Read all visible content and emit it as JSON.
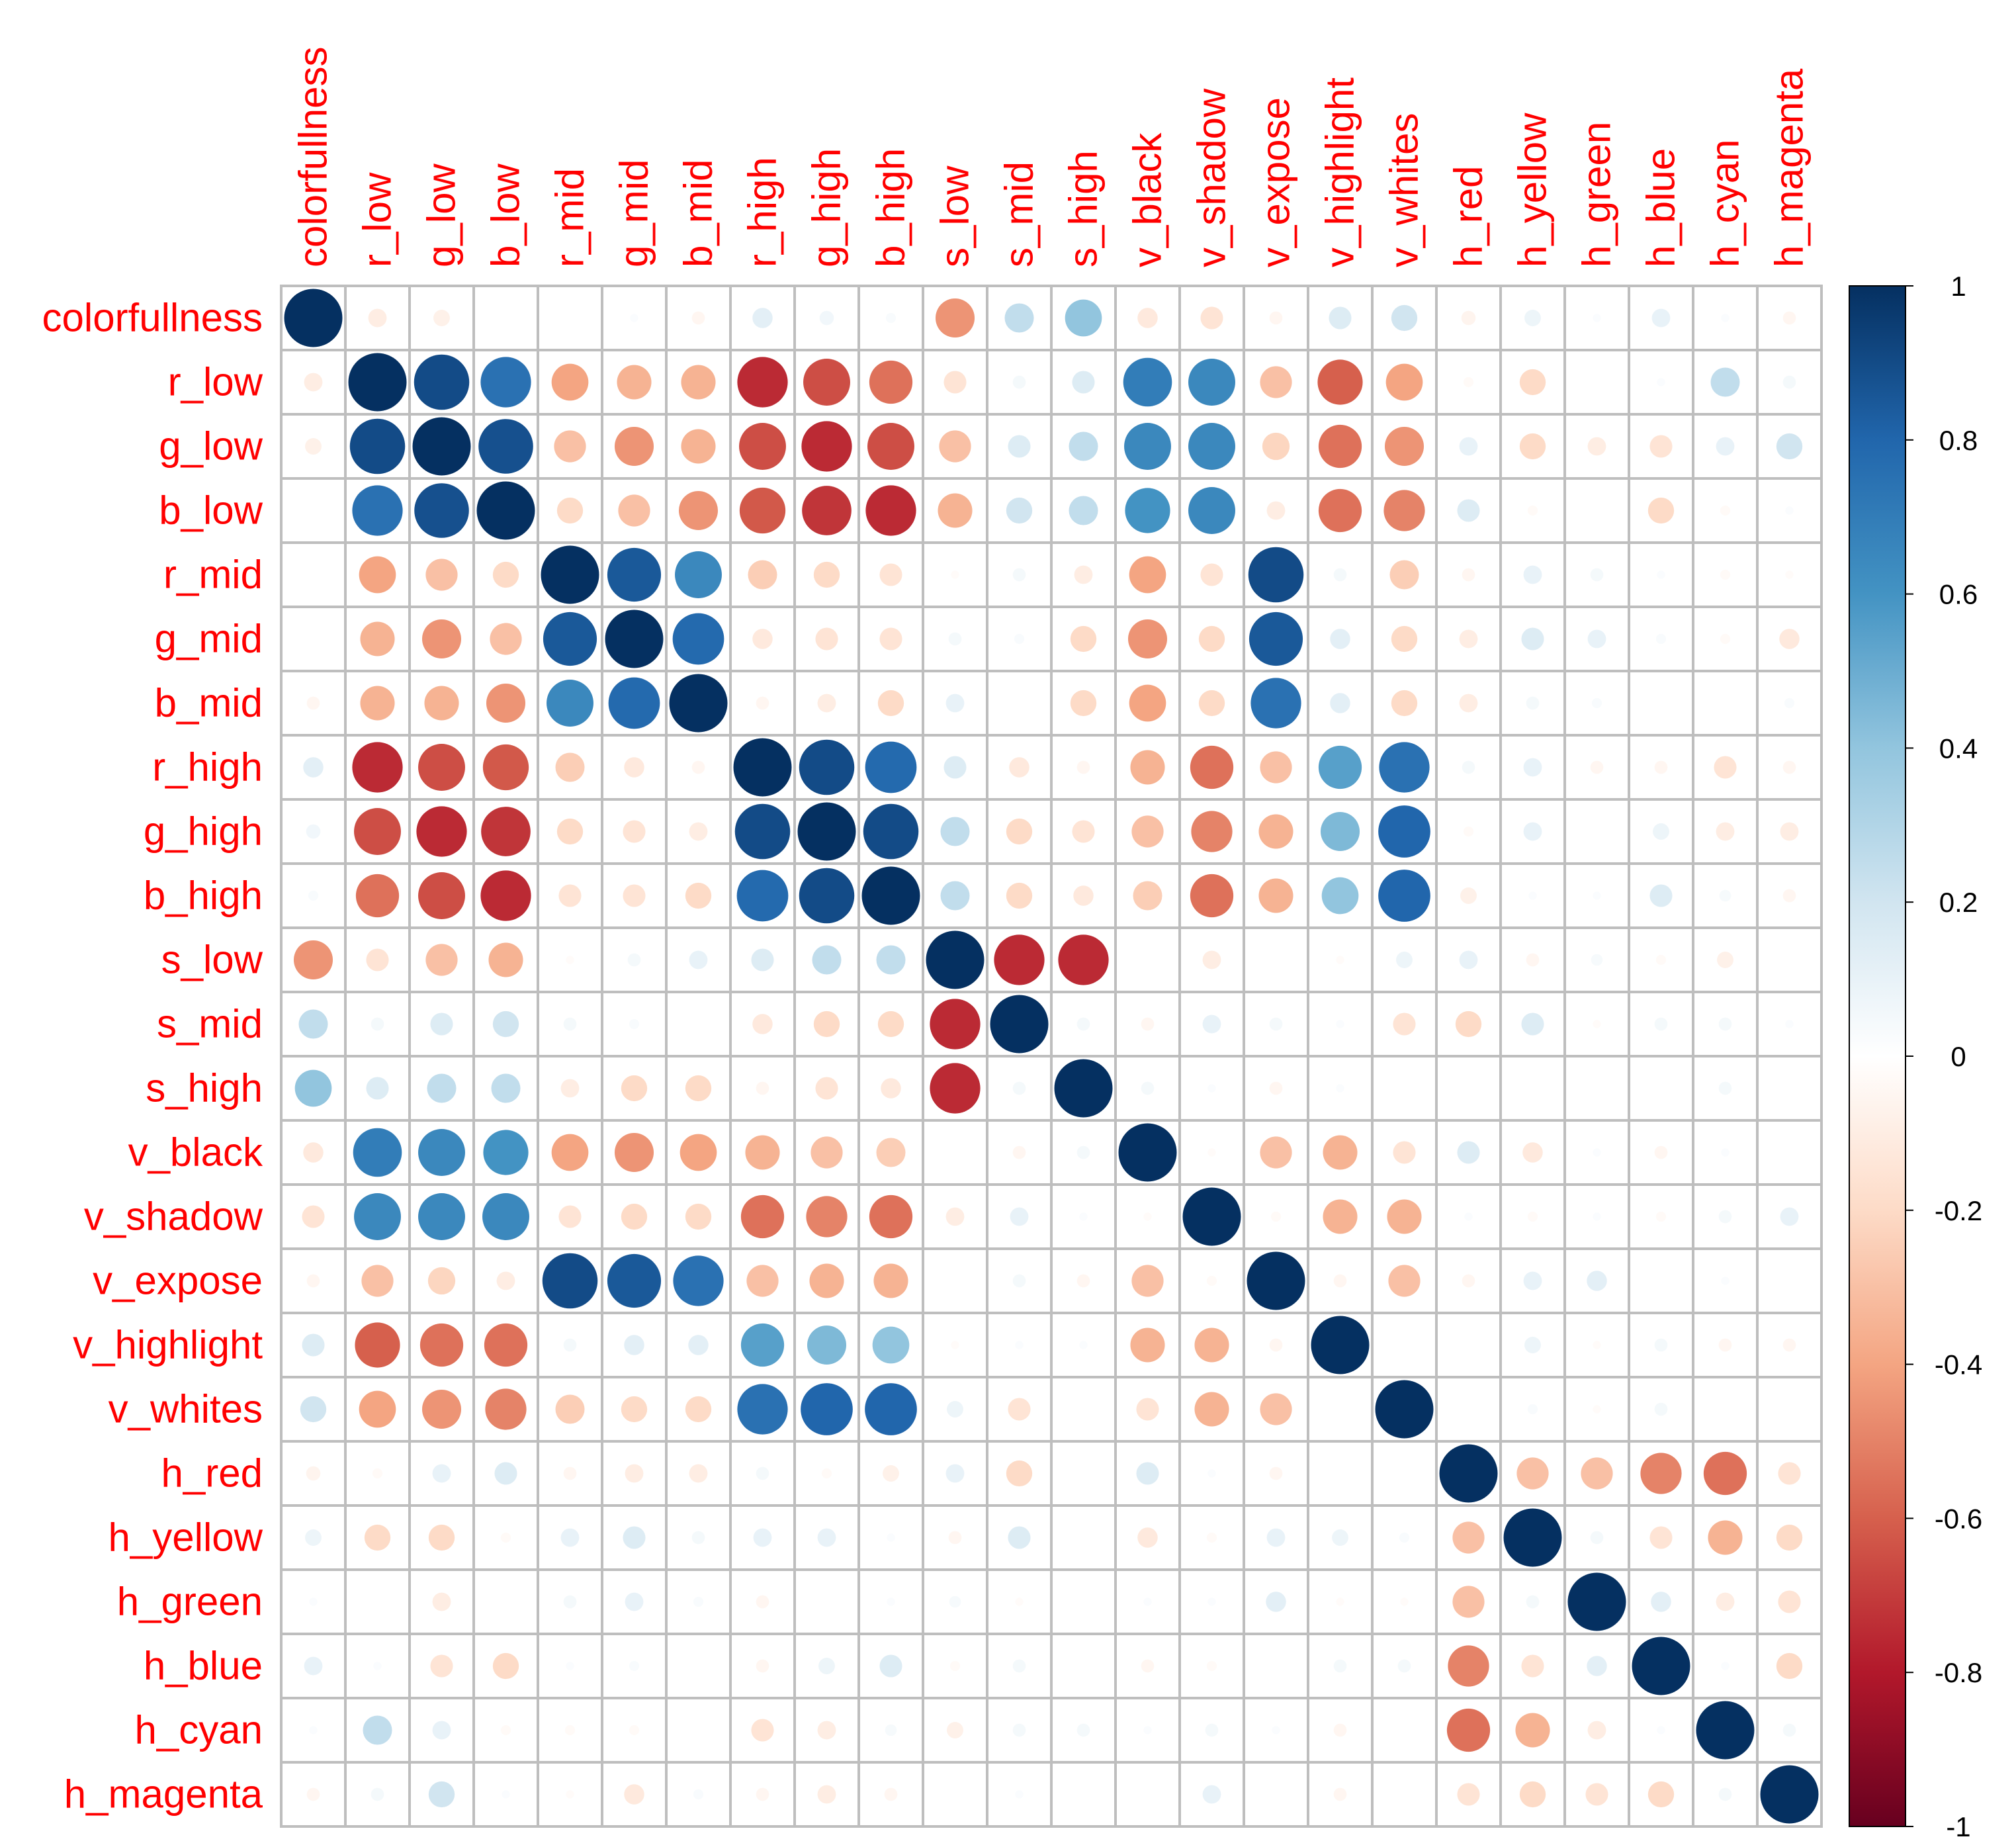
{
  "chart_data": {
    "type": "heatmap",
    "title": "",
    "variables": [
      "colorfullness",
      "r_low",
      "g_low",
      "b_low",
      "r_mid",
      "g_mid",
      "b_mid",
      "r_high",
      "g_high",
      "b_high",
      "s_low",
      "s_mid",
      "s_high",
      "v_black",
      "v_shadow",
      "v_expose",
      "v_highlight",
      "v_whites",
      "h_red",
      "h_yellow",
      "h_green",
      "h_blue",
      "h_cyan",
      "h_magenta"
    ],
    "matrix": [
      [
        1.0,
        -0.1,
        -0.08,
        0.0,
        0.0,
        0.02,
        -0.05,
        0.12,
        0.06,
        0.03,
        -0.45,
        0.25,
        0.4,
        -0.12,
        -0.15,
        -0.05,
        0.15,
        0.2,
        -0.06,
        0.08,
        0.02,
        0.1,
        0.02,
        -0.05
      ],
      [
        -0.1,
        1.0,
        0.9,
        0.75,
        -0.4,
        -0.35,
        -0.35,
        -0.75,
        -0.65,
        -0.55,
        -0.15,
        0.05,
        0.15,
        0.7,
        0.65,
        -0.3,
        -0.6,
        -0.4,
        -0.03,
        -0.2,
        0.0,
        0.02,
        0.25,
        0.05
      ],
      [
        -0.08,
        0.9,
        1.0,
        0.88,
        -0.3,
        -0.45,
        -0.35,
        -0.65,
        -0.75,
        -0.65,
        -0.3,
        0.15,
        0.25,
        0.65,
        0.65,
        -0.22,
        -0.55,
        -0.45,
        0.1,
        -0.2,
        -0.1,
        -0.15,
        0.1,
        0.2
      ],
      [
        0.0,
        0.75,
        0.88,
        1.0,
        -0.2,
        -0.3,
        -0.45,
        -0.62,
        -0.72,
        -0.75,
        -0.35,
        0.2,
        0.25,
        0.6,
        0.65,
        -0.1,
        -0.55,
        -0.5,
        0.15,
        -0.03,
        0.0,
        -0.2,
        -0.03,
        0.02
      ],
      [
        0.0,
        -0.4,
        -0.3,
        -0.2,
        1.0,
        0.85,
        0.65,
        -0.25,
        -0.2,
        -0.15,
        -0.02,
        0.05,
        -0.1,
        -0.4,
        -0.15,
        0.9,
        0.05,
        -0.25,
        -0.05,
        0.1,
        0.05,
        0.02,
        -0.03,
        -0.02
      ],
      [
        0.0,
        -0.35,
        -0.45,
        -0.3,
        0.85,
        1.0,
        0.78,
        -0.12,
        -0.15,
        -0.15,
        0.05,
        0.03,
        -0.2,
        -0.45,
        -0.2,
        0.85,
        0.12,
        -0.2,
        -0.1,
        0.15,
        0.1,
        0.03,
        -0.03,
        -0.12
      ],
      [
        -0.05,
        -0.35,
        -0.35,
        -0.45,
        0.65,
        0.78,
        1.0,
        -0.05,
        -0.1,
        -0.2,
        0.1,
        0.0,
        -0.2,
        -0.4,
        -0.2,
        0.75,
        0.12,
        -0.2,
        -0.1,
        0.05,
        0.03,
        0.0,
        0.0,
        0.03
      ],
      [
        0.12,
        -0.75,
        -0.65,
        -0.62,
        -0.25,
        -0.12,
        -0.05,
        1.0,
        0.9,
        0.78,
        0.15,
        -0.12,
        -0.05,
        -0.35,
        -0.55,
        -0.3,
        0.55,
        0.75,
        0.05,
        0.1,
        -0.05,
        -0.05,
        -0.15,
        -0.05
      ],
      [
        0.06,
        -0.65,
        -0.75,
        -0.72,
        -0.2,
        -0.15,
        -0.1,
        0.9,
        1.0,
        0.9,
        0.25,
        -0.2,
        -0.15,
        -0.3,
        -0.5,
        -0.35,
        0.45,
        0.8,
        -0.03,
        0.1,
        0.0,
        0.08,
        -0.1,
        -0.1
      ],
      [
        0.03,
        -0.55,
        -0.65,
        -0.75,
        -0.15,
        -0.15,
        -0.2,
        0.78,
        0.9,
        1.0,
        0.25,
        -0.2,
        -0.12,
        -0.25,
        -0.55,
        -0.35,
        0.4,
        0.8,
        -0.08,
        0.02,
        0.02,
        0.15,
        0.04,
        -0.05
      ],
      [
        -0.45,
        -0.15,
        -0.3,
        -0.35,
        -0.02,
        0.05,
        0.1,
        0.15,
        0.25,
        0.25,
        1.0,
        -0.75,
        -0.75,
        0.0,
        -0.1,
        0.0,
        -0.02,
        0.08,
        0.1,
        -0.05,
        0.04,
        -0.03,
        -0.08,
        0.0
      ],
      [
        0.25,
        0.05,
        0.15,
        0.2,
        0.05,
        0.03,
        0.0,
        -0.12,
        -0.2,
        -0.2,
        -0.75,
        1.0,
        0.05,
        -0.05,
        0.1,
        0.05,
        0.02,
        -0.15,
        -0.2,
        0.15,
        -0.02,
        0.05,
        0.05,
        0.02
      ],
      [
        0.4,
        0.15,
        0.25,
        0.25,
        -0.1,
        -0.2,
        -0.2,
        -0.05,
        -0.15,
        -0.12,
        -0.75,
        0.05,
        1.0,
        0.05,
        0.02,
        -0.05,
        0.02,
        0.0,
        0.0,
        0.0,
        0.0,
        0.0,
        0.05,
        0.0
      ],
      [
        -0.12,
        0.7,
        0.65,
        0.6,
        -0.4,
        -0.45,
        -0.4,
        -0.35,
        -0.3,
        -0.25,
        0.0,
        -0.05,
        0.05,
        1.0,
        -0.02,
        -0.3,
        -0.35,
        -0.15,
        0.15,
        -0.12,
        0.02,
        -0.05,
        0.02,
        0.0
      ],
      [
        -0.15,
        0.65,
        0.65,
        0.65,
        -0.15,
        -0.2,
        -0.2,
        -0.55,
        -0.5,
        -0.55,
        -0.1,
        0.1,
        0.02,
        -0.02,
        1.0,
        -0.03,
        -0.35,
        -0.35,
        0.02,
        -0.03,
        0.02,
        -0.03,
        0.05,
        0.1
      ],
      [
        -0.05,
        -0.3,
        -0.22,
        -0.1,
        0.9,
        0.85,
        0.75,
        -0.3,
        -0.35,
        -0.35,
        0.0,
        0.05,
        -0.05,
        -0.3,
        -0.03,
        1.0,
        -0.05,
        -0.3,
        -0.05,
        0.1,
        0.12,
        0.0,
        0.02,
        0.0
      ],
      [
        0.15,
        -0.6,
        -0.55,
        -0.55,
        0.05,
        0.12,
        0.12,
        0.55,
        0.45,
        0.4,
        -0.02,
        0.02,
        0.02,
        -0.35,
        -0.35,
        -0.05,
        1.0,
        0.0,
        0.0,
        0.08,
        -0.02,
        0.05,
        -0.05,
        -0.05
      ],
      [
        0.2,
        -0.4,
        -0.45,
        -0.5,
        -0.25,
        -0.2,
        -0.2,
        0.75,
        0.8,
        0.8,
        0.08,
        -0.15,
        0.0,
        -0.15,
        -0.35,
        -0.3,
        0.0,
        1.0,
        0.0,
        0.03,
        -0.02,
        0.05,
        0.0,
        0.0
      ],
      [
        -0.06,
        -0.03,
        0.1,
        0.15,
        -0.05,
        -0.1,
        -0.1,
        0.05,
        -0.03,
        -0.08,
        0.1,
        -0.2,
        0.0,
        0.15,
        0.02,
        -0.05,
        0.0,
        0.0,
        1.0,
        -0.3,
        -0.3,
        -0.5,
        -0.55,
        -0.15
      ],
      [
        0.08,
        -0.2,
        -0.2,
        -0.03,
        0.1,
        0.15,
        0.05,
        0.1,
        0.1,
        0.02,
        -0.05,
        0.15,
        0.0,
        -0.12,
        -0.03,
        0.1,
        0.08,
        0.03,
        -0.3,
        1.0,
        0.05,
        -0.15,
        -0.35,
        -0.2
      ],
      [
        0.02,
        0.0,
        -0.1,
        0.0,
        0.05,
        0.1,
        0.03,
        -0.05,
        0.0,
        0.02,
        0.04,
        -0.02,
        0.0,
        0.02,
        0.02,
        0.12,
        -0.02,
        -0.02,
        -0.3,
        0.05,
        1.0,
        0.12,
        -0.1,
        -0.15
      ],
      [
        0.1,
        0.02,
        -0.15,
        -0.2,
        0.02,
        0.03,
        0.0,
        -0.05,
        0.08,
        0.15,
        -0.03,
        0.05,
        0.0,
        -0.05,
        -0.03,
        0.0,
        0.05,
        0.05,
        -0.5,
        -0.15,
        0.12,
        1.0,
        0.02,
        -0.2
      ],
      [
        0.02,
        0.25,
        0.1,
        -0.03,
        -0.03,
        -0.03,
        0.0,
        -0.15,
        -0.1,
        0.04,
        -0.08,
        0.05,
        0.05,
        0.02,
        0.05,
        0.02,
        -0.05,
        0.0,
        -0.55,
        -0.35,
        -0.1,
        0.02,
        1.0,
        0.05
      ],
      [
        -0.05,
        0.05,
        0.2,
        0.02,
        -0.02,
        -0.12,
        0.03,
        -0.05,
        -0.1,
        -0.05,
        0.0,
        0.02,
        0.0,
        0.0,
        0.1,
        0.0,
        -0.05,
        0.0,
        -0.15,
        -0.2,
        -0.15,
        -0.2,
        0.05,
        1.0
      ]
    ],
    "colorbar": {
      "range": [
        -1,
        1
      ],
      "ticks": [
        "1",
        "0.8",
        "0.6",
        "0.4",
        "0.2",
        "0",
        "-0.2",
        "-0.4",
        "-0.6",
        "-0.8",
        "-1"
      ],
      "tick_values": [
        1,
        0.8,
        0.6,
        0.4,
        0.2,
        0,
        -0.2,
        -0.4,
        -0.6,
        -0.8,
        -1
      ]
    },
    "palette": [
      "#67001F",
      "#B2182B",
      "#D6604D",
      "#F4A582",
      "#FDDBC7",
      "#FFFFFF",
      "#D1E5F0",
      "#92C5DE",
      "#4393C3",
      "#2166AC",
      "#053061"
    ],
    "label_color": "#FF0000",
    "grid_color": "#BEBEBE",
    "circle_size_by": "absolute correlation"
  }
}
